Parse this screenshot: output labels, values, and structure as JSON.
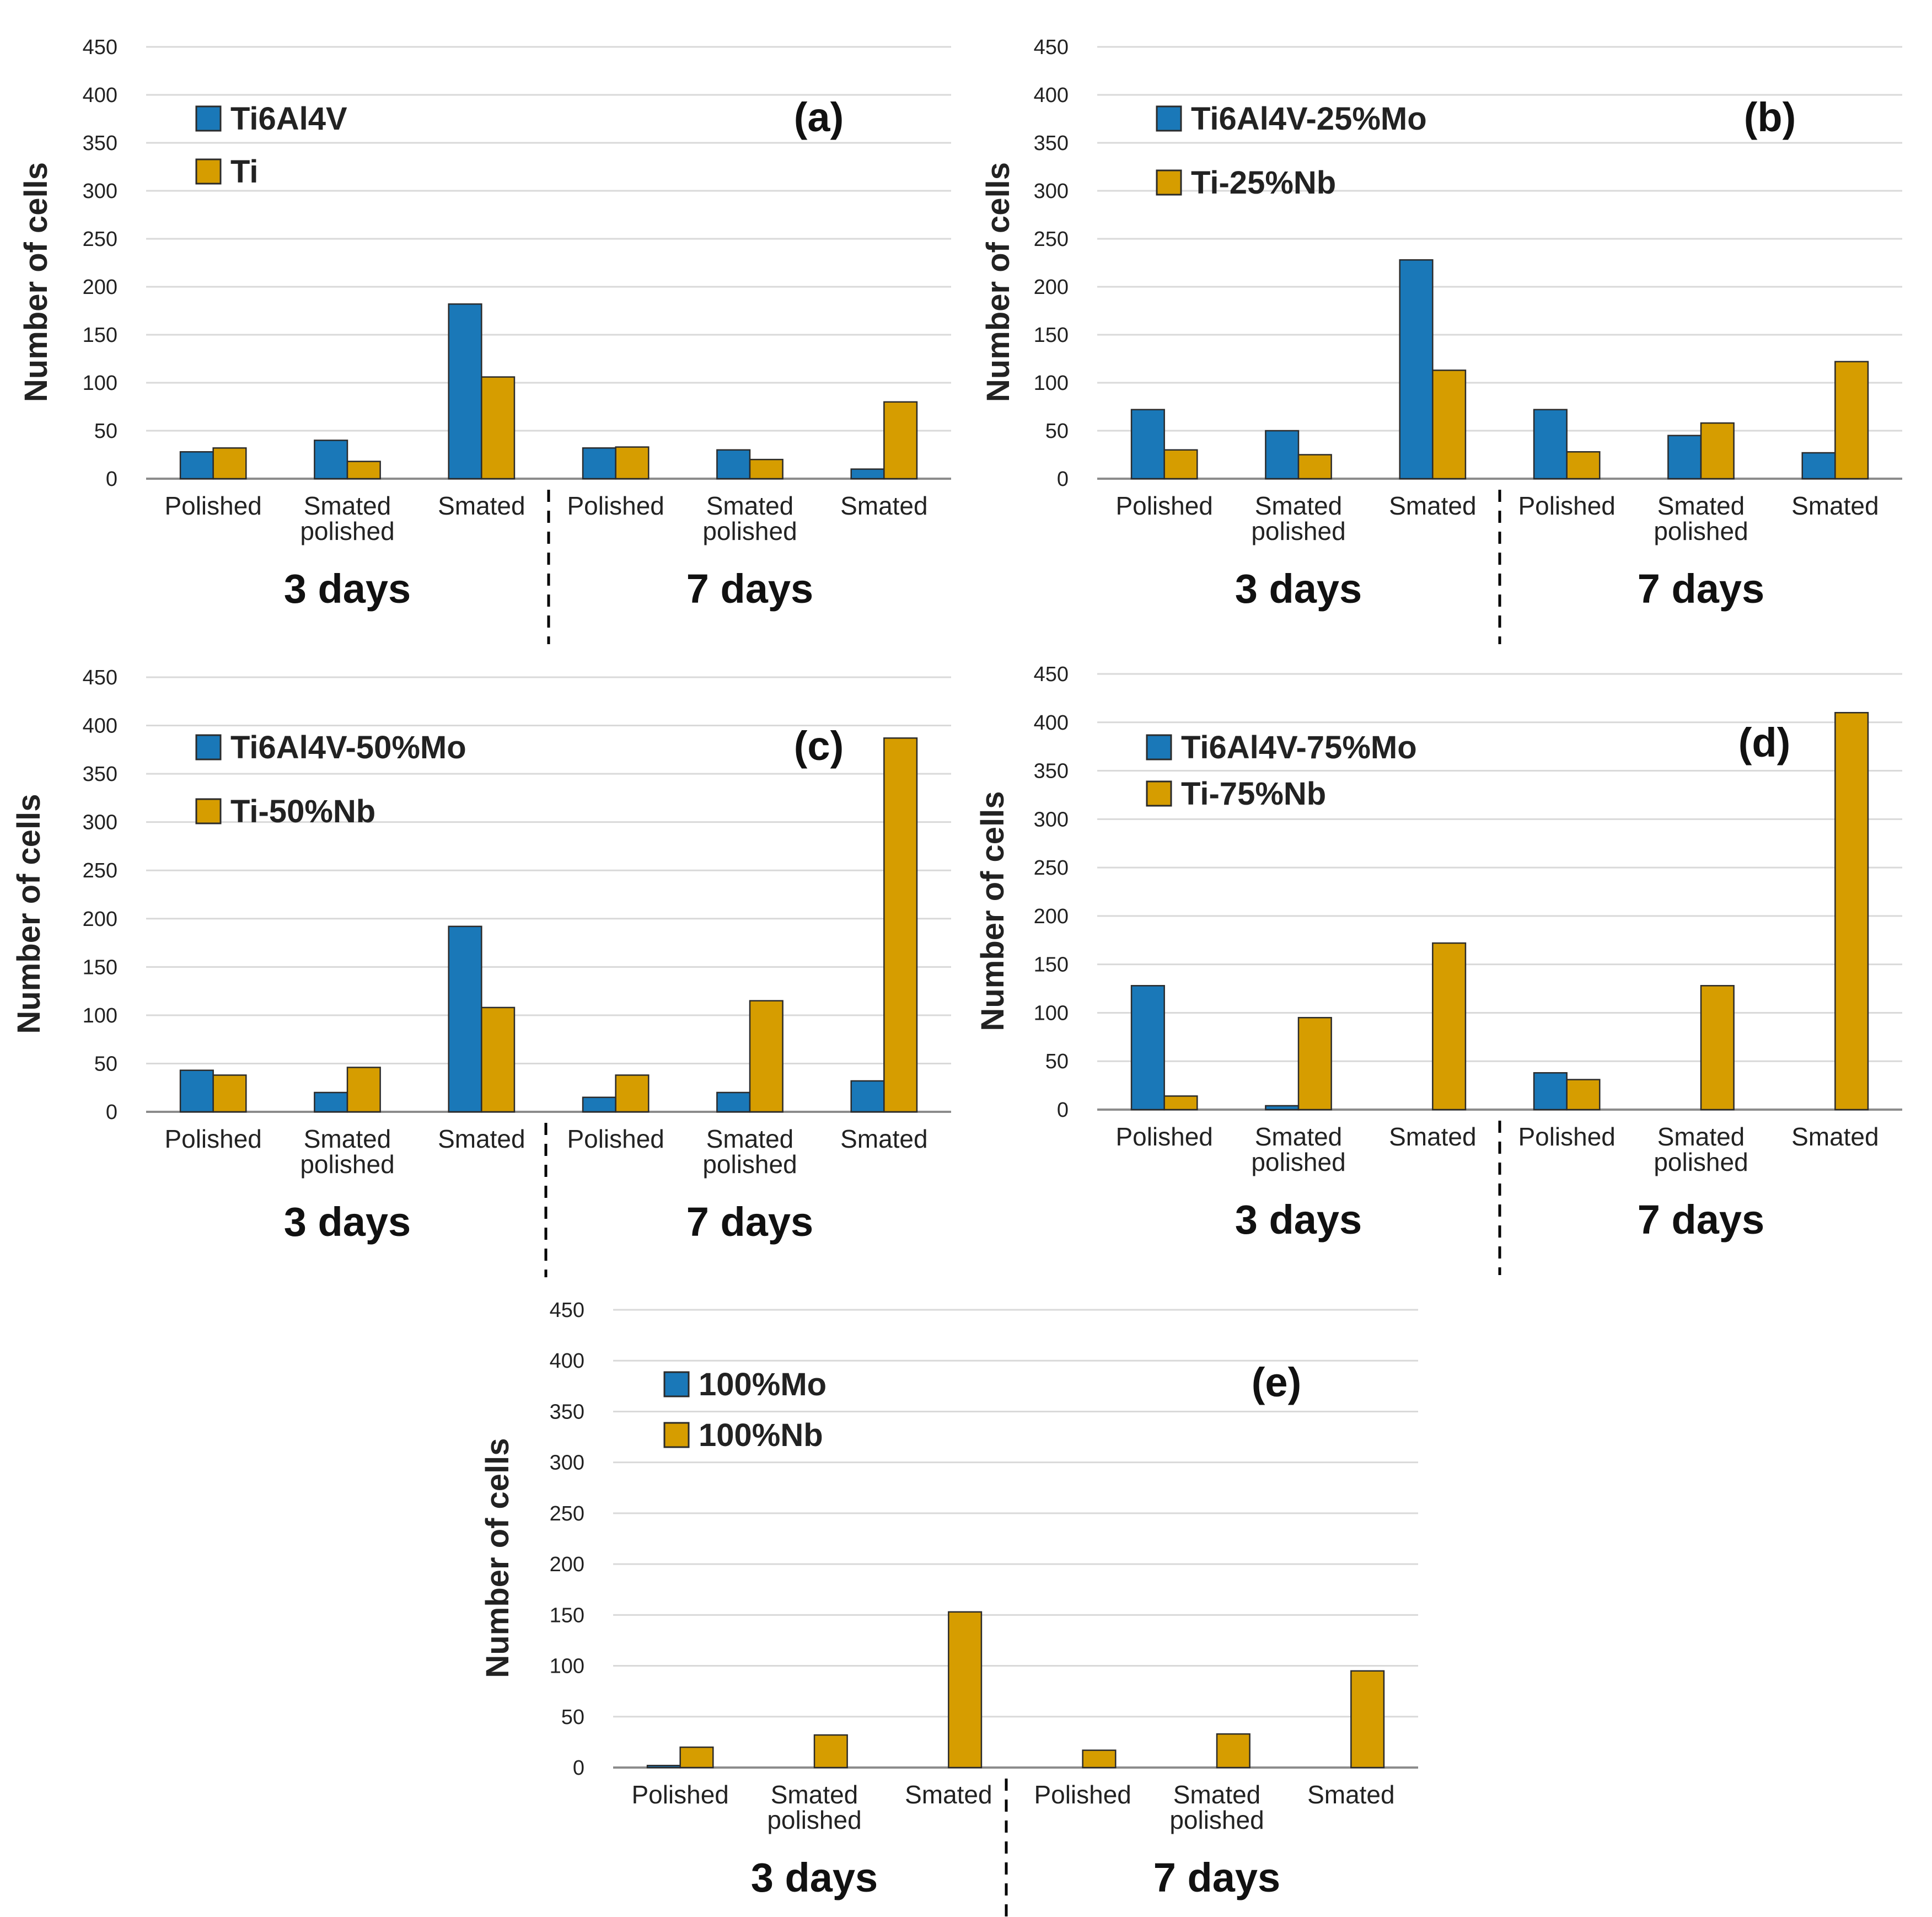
{
  "colors": {
    "series1": "#1a78b8",
    "series2": "#d69d00",
    "bar_stroke": "#2b2b2b",
    "grid": "#d9d9d9"
  },
  "chart_data": [
    {
      "type": "bar",
      "panel_label": "(a)",
      "ylabel": "Number of cells",
      "ylim": [
        0,
        450
      ],
      "yticks": [
        "0",
        "50",
        "100",
        "150",
        "200",
        "250",
        "300",
        "350",
        "400",
        "450"
      ],
      "categories": [
        [
          "Polished"
        ],
        [
          "Smated",
          "polished"
        ],
        [
          "Smated"
        ],
        [
          "Polished"
        ],
        [
          "Smated",
          "polished"
        ],
        [
          "Smated"
        ]
      ],
      "groups": [
        "3 days",
        "7 days"
      ],
      "series": [
        {
          "name": "Ti6Al4V",
          "values": [
            28,
            40,
            182,
            32,
            30,
            10
          ]
        },
        {
          "name": "Ti",
          "values": [
            32,
            18,
            106,
            33,
            20,
            80
          ]
        }
      ]
    },
    {
      "type": "bar",
      "panel_label": "(b)",
      "ylabel": "Number of cells",
      "ylim": [
        0,
        450
      ],
      "yticks": [
        "0",
        "50",
        "100",
        "150",
        "200",
        "250",
        "300",
        "350",
        "400",
        "450"
      ],
      "categories": [
        [
          "Polished"
        ],
        [
          "Smated",
          "polished"
        ],
        [
          "Smated"
        ],
        [
          "Polished"
        ],
        [
          "Smated",
          "polished"
        ],
        [
          "Smated"
        ]
      ],
      "groups": [
        "3 days",
        "7 days"
      ],
      "series": [
        {
          "name": "Ti6Al4V-25%Mo",
          "values": [
            72,
            50,
            228,
            72,
            45,
            27
          ]
        },
        {
          "name": "Ti-25%Nb",
          "values": [
            30,
            25,
            113,
            28,
            58,
            122
          ]
        }
      ]
    },
    {
      "type": "bar",
      "panel_label": "(c)",
      "ylabel": "Number of cells",
      "ylim": [
        0,
        450
      ],
      "yticks": [
        "0",
        "50",
        "100",
        "150",
        "200",
        "250",
        "300",
        "350",
        "400",
        "450"
      ],
      "categories": [
        [
          "Polished"
        ],
        [
          "Smated",
          "polished"
        ],
        [
          "Smated"
        ],
        [
          "Polished"
        ],
        [
          "Smated",
          "polished"
        ],
        [
          "Smated"
        ]
      ],
      "groups": [
        "3 days",
        "7 days"
      ],
      "series": [
        {
          "name": "Ti6Al4V-50%Mo",
          "values": [
            43,
            20,
            192,
            15,
            20,
            32
          ]
        },
        {
          "name": "Ti-50%Nb",
          "values": [
            38,
            46,
            108,
            38,
            115,
            387
          ]
        }
      ]
    },
    {
      "type": "bar",
      "panel_label": "(d)",
      "ylabel": "Number of cells",
      "ylim": [
        0,
        450
      ],
      "yticks": [
        "0",
        "50",
        "100",
        "150",
        "200",
        "250",
        "300",
        "350",
        "400",
        "450"
      ],
      "categories": [
        [
          "Polished"
        ],
        [
          "Smated",
          "polished"
        ],
        [
          "Smated"
        ],
        [
          "Polished"
        ],
        [
          "Smated",
          "polished"
        ],
        [
          "Smated"
        ]
      ],
      "groups": [
        "3 days",
        "7 days"
      ],
      "series": [
        {
          "name": "Ti6Al4V-75%Mo",
          "values": [
            128,
            4,
            0,
            38,
            0,
            0
          ]
        },
        {
          "name": "Ti-75%Nb",
          "values": [
            14,
            95,
            172,
            31,
            128,
            410
          ]
        }
      ]
    },
    {
      "type": "bar",
      "panel_label": "(e)",
      "ylabel": "Number of cells",
      "ylim": [
        0,
        450
      ],
      "yticks": [
        "0",
        "50",
        "100",
        "150",
        "200",
        "250",
        "300",
        "350",
        "400",
        "450"
      ],
      "categories": [
        [
          "Polished"
        ],
        [
          "Smated",
          "polished"
        ],
        [
          "Smated"
        ],
        [
          "Polished"
        ],
        [
          "Smated",
          "polished"
        ],
        [
          "Smated"
        ]
      ],
      "groups": [
        "3 days",
        "7 days"
      ],
      "series": [
        {
          "name": "100%Mo",
          "values": [
            2,
            0,
            0,
            0,
            0,
            0
          ]
        },
        {
          "name": "100%Nb",
          "values": [
            20,
            32,
            153,
            17,
            33,
            95
          ]
        }
      ]
    }
  ]
}
